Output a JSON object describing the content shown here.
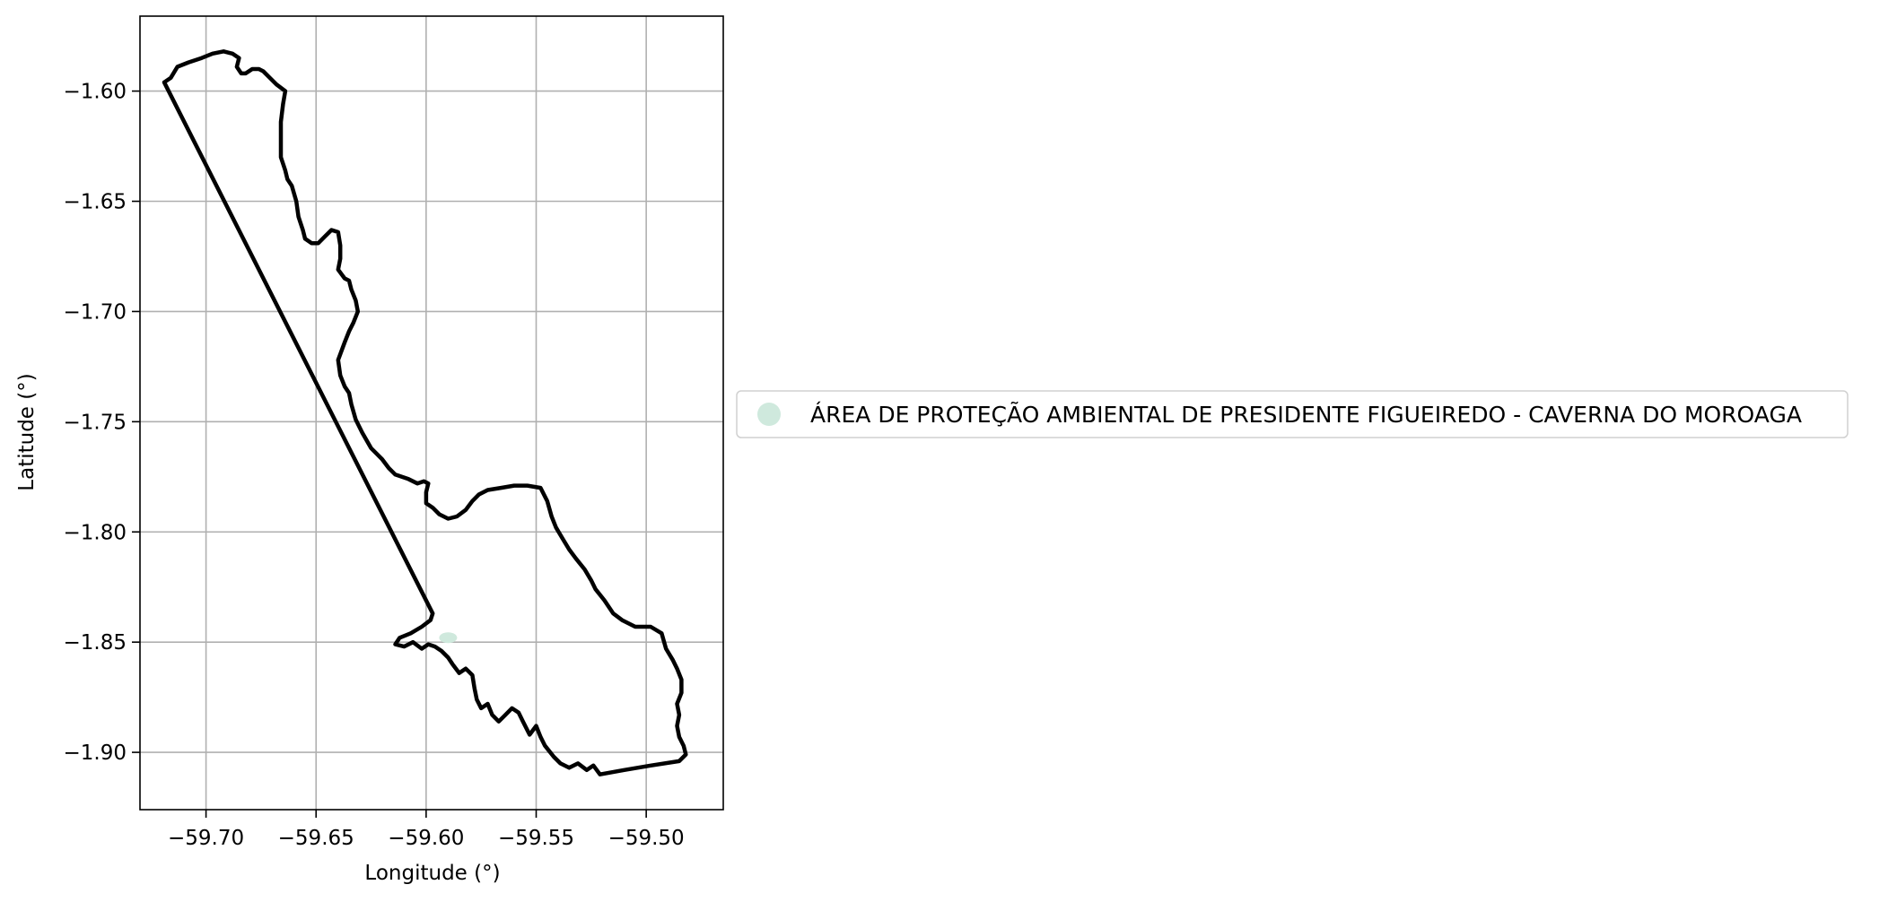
{
  "chart_data": {
    "type": "map",
    "xlabel": "Longitude (°)",
    "ylabel": "Latitude (°)",
    "xlim": [
      -59.73,
      -59.465
    ],
    "ylim": [
      -1.926,
      -1.566
    ],
    "xticks": [
      {
        "value": -59.7,
        "label": "−59.70"
      },
      {
        "value": -59.65,
        "label": "−59.65"
      },
      {
        "value": -59.6,
        "label": "−59.60"
      },
      {
        "value": -59.55,
        "label": "−59.55"
      },
      {
        "value": -59.5,
        "label": "−59.50"
      }
    ],
    "yticks": [
      {
        "value": -1.6,
        "label": "−1.60"
      },
      {
        "value": -1.65,
        "label": "−1.65"
      },
      {
        "value": -1.7,
        "label": "−1.70"
      },
      {
        "value": -1.75,
        "label": "−1.75"
      },
      {
        "value": -1.8,
        "label": "−1.80"
      },
      {
        "value": -1.85,
        "label": "−1.85"
      },
      {
        "value": -1.9,
        "label": "−1.90"
      }
    ],
    "grid": true,
    "legend": {
      "placement": "center-right, outside axes",
      "entries": [
        {
          "label": "ÁREA DE PROTEÇÃO AMBIENTAL DE PRESIDENTE FIGUEIREDO - CAVERNA DO MOROAGA",
          "color": "#cfe9dd",
          "marker": "circle"
        }
      ]
    },
    "boundary_color": "#000000",
    "grid_color": "#b0b0b0",
    "boundary": [
      [
        -59.719,
        -1.596
      ],
      [
        -59.716,
        -1.594
      ],
      [
        -59.713,
        -1.589
      ],
      [
        -59.708,
        -1.587
      ],
      [
        -59.702,
        -1.585
      ],
      [
        -59.697,
        -1.583
      ],
      [
        -59.692,
        -1.582
      ],
      [
        -59.688,
        -1.583
      ],
      [
        -59.685,
        -1.585
      ],
      [
        -59.686,
        -1.589
      ],
      [
        -59.684,
        -1.592
      ],
      [
        -59.682,
        -1.592
      ],
      [
        -59.679,
        -1.59
      ],
      [
        -59.676,
        -1.59
      ],
      [
        -59.674,
        -1.591
      ],
      [
        -59.671,
        -1.594
      ],
      [
        -59.668,
        -1.597
      ],
      [
        -59.664,
        -1.6
      ],
      [
        -59.665,
        -1.606
      ],
      [
        -59.666,
        -1.614
      ],
      [
        -59.666,
        -1.621
      ],
      [
        -59.666,
        -1.63
      ],
      [
        -59.664,
        -1.636
      ],
      [
        -59.663,
        -1.64
      ],
      [
        -59.661,
        -1.643
      ],
      [
        -59.659,
        -1.65
      ],
      [
        -59.658,
        -1.657
      ],
      [
        -59.656,
        -1.663
      ],
      [
        -59.655,
        -1.667
      ],
      [
        -59.652,
        -1.669
      ],
      [
        -59.649,
        -1.669
      ],
      [
        -59.646,
        -1.666
      ],
      [
        -59.643,
        -1.663
      ],
      [
        -59.64,
        -1.664
      ],
      [
        -59.639,
        -1.67
      ],
      [
        -59.639,
        -1.676
      ],
      [
        -59.64,
        -1.681
      ],
      [
        -59.637,
        -1.685
      ],
      [
        -59.635,
        -1.686
      ],
      [
        -59.634,
        -1.69
      ],
      [
        -59.632,
        -1.695
      ],
      [
        -59.631,
        -1.7
      ],
      [
        -59.633,
        -1.705
      ],
      [
        -59.635,
        -1.709
      ],
      [
        -59.637,
        -1.714
      ],
      [
        -59.64,
        -1.722
      ],
      [
        -59.639,
        -1.729
      ],
      [
        -59.637,
        -1.734
      ],
      [
        -59.635,
        -1.737
      ],
      [
        -59.634,
        -1.742
      ],
      [
        -59.632,
        -1.749
      ],
      [
        -59.629,
        -1.755
      ],
      [
        -59.625,
        -1.762
      ],
      [
        -59.62,
        -1.767
      ],
      [
        -59.617,
        -1.771
      ],
      [
        -59.614,
        -1.774
      ],
      [
        -59.608,
        -1.776
      ],
      [
        -59.604,
        -1.778
      ],
      [
        -59.601,
        -1.777
      ],
      [
        -59.599,
        -1.778
      ],
      [
        -59.6,
        -1.782
      ],
      [
        -59.6,
        -1.787
      ],
      [
        -59.597,
        -1.789
      ],
      [
        -59.594,
        -1.792
      ],
      [
        -59.59,
        -1.794
      ],
      [
        -59.586,
        -1.793
      ],
      [
        -59.582,
        -1.79
      ],
      [
        -59.579,
        -1.786
      ],
      [
        -59.576,
        -1.783
      ],
      [
        -59.572,
        -1.781
      ],
      [
        -59.566,
        -1.78
      ],
      [
        -59.56,
        -1.779
      ],
      [
        -59.554,
        -1.779
      ],
      [
        -59.548,
        -1.78
      ],
      [
        -59.545,
        -1.786
      ],
      [
        -59.543,
        -1.793
      ],
      [
        -59.541,
        -1.798
      ],
      [
        -59.538,
        -1.803
      ],
      [
        -59.535,
        -1.808
      ],
      [
        -59.532,
        -1.812
      ],
      [
        -59.528,
        -1.817
      ],
      [
        -59.525,
        -1.822
      ],
      [
        -59.523,
        -1.826
      ],
      [
        -59.519,
        -1.831
      ],
      [
        -59.515,
        -1.837
      ],
      [
        -59.511,
        -1.84
      ],
      [
        -59.505,
        -1.843
      ],
      [
        -59.498,
        -1.843
      ],
      [
        -59.493,
        -1.846
      ],
      [
        -59.491,
        -1.853
      ],
      [
        -59.488,
        -1.858
      ],
      [
        -59.486,
        -1.862
      ],
      [
        -59.484,
        -1.867
      ],
      [
        -59.484,
        -1.873
      ],
      [
        -59.486,
        -1.878
      ],
      [
        -59.485,
        -1.883
      ],
      [
        -59.486,
        -1.888
      ],
      [
        -59.485,
        -1.893
      ],
      [
        -59.483,
        -1.897
      ],
      [
        -59.482,
        -1.901
      ],
      [
        -59.485,
        -1.904
      ],
      [
        -59.498,
        -1.906
      ],
      [
        -59.51,
        -1.908
      ],
      [
        -59.521,
        -1.91
      ],
      [
        -59.524,
        -1.906
      ],
      [
        -59.527,
        -1.908
      ],
      [
        -59.531,
        -1.905
      ],
      [
        -59.535,
        -1.907
      ],
      [
        -59.539,
        -1.905
      ],
      [
        -59.542,
        -1.902
      ],
      [
        -59.546,
        -1.897
      ],
      [
        -59.548,
        -1.893
      ],
      [
        -59.55,
        -1.888
      ],
      [
        -59.553,
        -1.892
      ],
      [
        -59.556,
        -1.886
      ],
      [
        -59.558,
        -1.882
      ],
      [
        -59.561,
        -1.88
      ],
      [
        -59.564,
        -1.883
      ],
      [
        -59.567,
        -1.886
      ],
      [
        -59.57,
        -1.883
      ],
      [
        -59.572,
        -1.878
      ],
      [
        -59.575,
        -1.88
      ],
      [
        -59.577,
        -1.876
      ],
      [
        -59.578,
        -1.871
      ],
      [
        -59.579,
        -1.865
      ],
      [
        -59.582,
        -1.862
      ],
      [
        -59.585,
        -1.864
      ],
      [
        -59.588,
        -1.86
      ],
      [
        -59.59,
        -1.857
      ],
      [
        -59.593,
        -1.854
      ],
      [
        -59.596,
        -1.852
      ],
      [
        -59.599,
        -1.851
      ],
      [
        -59.602,
        -1.853
      ],
      [
        -59.606,
        -1.85
      ],
      [
        -59.61,
        -1.852
      ],
      [
        -59.614,
        -1.851
      ],
      [
        -59.612,
        -1.848
      ],
      [
        -59.607,
        -1.846
      ],
      [
        -59.602,
        -1.843
      ],
      [
        -59.598,
        -1.84
      ],
      [
        -59.597,
        -1.837
      ],
      [
        -59.719,
        -1.596
      ]
    ]
  }
}
